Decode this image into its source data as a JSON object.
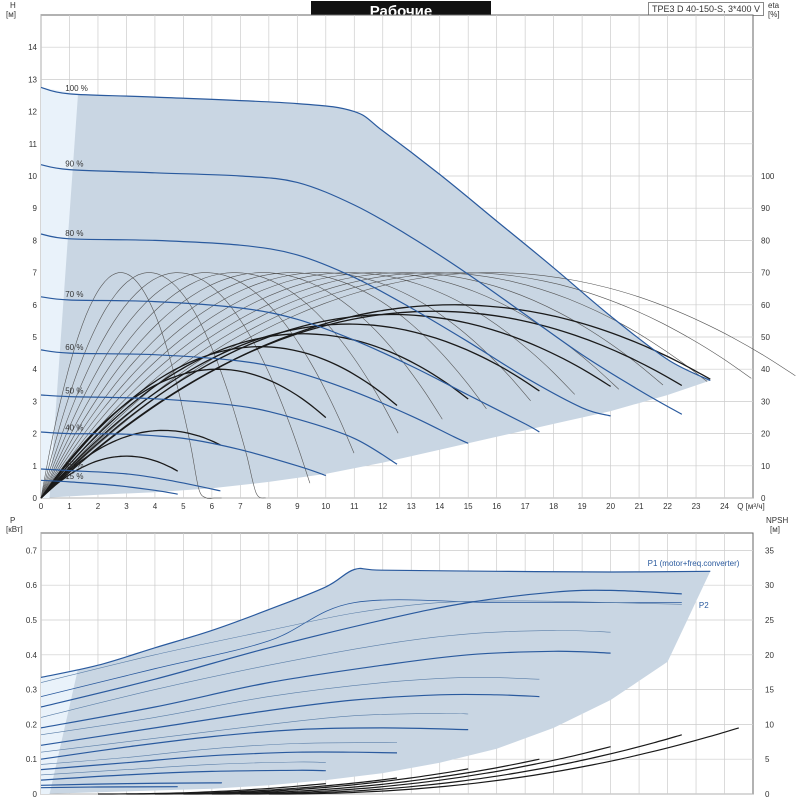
{
  "header": {
    "title": "Рабочие характеристики",
    "model": "TPE3 D 40-150-S, 3*400 V"
  },
  "colors": {
    "envelope_fill": "#c9d6e3",
    "envelope_light": "#e9f2fa",
    "speed_curve": "#2a5a9e",
    "efficiency_curve": "#1a1a1a",
    "grid": "#cccccc"
  },
  "chart_data": [
    {
      "type": "line",
      "name": "head",
      "y_axis_label_lines": [
        "H",
        "[м]"
      ],
      "y2_axis_label_lines": [
        "eta",
        "[%]"
      ],
      "x_axis_label": "Q [м³/ч]",
      "xlim": [
        0,
        25
      ],
      "ylim": [
        0,
        15
      ],
      "y2lim": [
        0,
        150
      ],
      "x_ticks": [
        0,
        1,
        2,
        3,
        4,
        5,
        6,
        7,
        8,
        9,
        10,
        11,
        12,
        13,
        14,
        15,
        16,
        17,
        18,
        19,
        20,
        21,
        22,
        23,
        24
      ],
      "y_ticks": [
        0,
        1,
        2,
        3,
        4,
        5,
        6,
        7,
        8,
        9,
        10,
        11,
        12,
        13,
        14
      ],
      "y2_ticks": [
        0,
        10,
        20,
        30,
        40,
        50,
        60,
        70,
        80,
        90,
        100
      ],
      "envelope_upper": [
        [
          0,
          12.75
        ],
        [
          1,
          12.55
        ],
        [
          4,
          12.45
        ],
        [
          9,
          12.25
        ],
        [
          11,
          12.0
        ],
        [
          12,
          11.4
        ],
        [
          14,
          10.05
        ],
        [
          16,
          8.6
        ],
        [
          18,
          7.15
        ],
        [
          20,
          5.65
        ],
        [
          22,
          4.3
        ],
        [
          23.5,
          3.65
        ]
      ],
      "envelope_lower": [
        [
          0,
          0
        ],
        [
          1,
          0.05
        ],
        [
          2,
          0.1
        ],
        [
          4,
          0.18
        ],
        [
          6,
          0.3
        ],
        [
          8,
          0.5
        ],
        [
          10,
          0.75
        ],
        [
          12,
          1.1
        ],
        [
          14,
          1.5
        ],
        [
          16,
          1.9
        ],
        [
          18,
          2.3
        ],
        [
          20,
          2.7
        ],
        [
          22,
          3.2
        ],
        [
          23.5,
          3.65
        ]
      ],
      "speed_labels": [
        "100 %",
        "90 %",
        "80 %",
        "70 %",
        "60 %",
        "50 %",
        "40 %",
        "25 %",
        "15 %"
      ],
      "speed_curves": [
        {
          "label": "100 %",
          "points": [
            [
              0,
              12.75
            ],
            [
              1,
              12.55
            ],
            [
              4,
              12.45
            ],
            [
              9,
              12.25
            ],
            [
              11,
              12.0
            ],
            [
              12,
              11.4
            ],
            [
              14,
              10.05
            ],
            [
              16,
              8.6
            ],
            [
              18,
              7.15
            ],
            [
              20,
              5.65
            ],
            [
              22,
              4.3
            ],
            [
              23.5,
              3.65
            ]
          ]
        },
        {
          "label": "90 %",
          "points": [
            [
              0,
              10.35
            ],
            [
              1,
              10.2
            ],
            [
              4,
              10.1
            ],
            [
              7,
              10.0
            ],
            [
              9,
              9.8
            ],
            [
              11,
              9.1
            ],
            [
              13,
              8.1
            ],
            [
              15,
              6.95
            ],
            [
              17,
              5.7
            ],
            [
              19,
              4.45
            ],
            [
              21,
              3.35
            ],
            [
              22.5,
              2.6
            ]
          ]
        },
        {
          "label": "80 %",
          "points": [
            [
              0,
              8.2
            ],
            [
              1,
              8.05
            ],
            [
              4,
              8.0
            ],
            [
              7,
              7.85
            ],
            [
              9,
              7.55
            ],
            [
              11,
              6.85
            ],
            [
              13,
              5.9
            ],
            [
              15,
              4.85
            ],
            [
              17,
              3.75
            ],
            [
              19,
              2.8
            ],
            [
              20,
              2.55
            ]
          ]
        },
        {
          "label": "70 %",
          "points": [
            [
              0,
              6.25
            ],
            [
              1,
              6.15
            ],
            [
              4,
              6.1
            ],
            [
              7,
              5.9
            ],
            [
              9,
              5.55
            ],
            [
              11,
              4.9
            ],
            [
              13,
              4.1
            ],
            [
              15,
              3.2
            ],
            [
              17,
              2.3
            ],
            [
              17.5,
              2.05
            ]
          ]
        },
        {
          "label": "60 %",
          "points": [
            [
              0,
              4.6
            ],
            [
              1,
              4.5
            ],
            [
              4,
              4.45
            ],
            [
              7,
              4.25
            ],
            [
              9,
              3.9
            ],
            [
              11,
              3.3
            ],
            [
              13,
              2.55
            ],
            [
              14.5,
              1.9
            ],
            [
              15,
              1.7
            ]
          ]
        },
        {
          "label": "50 %",
          "points": [
            [
              0,
              3.2
            ],
            [
              1,
              3.15
            ],
            [
              4,
              3.08
            ],
            [
              7,
              2.85
            ],
            [
              9,
              2.45
            ],
            [
              11,
              1.85
            ],
            [
              12.5,
              1.05
            ]
          ]
        },
        {
          "label": "40 %",
          "points": [
            [
              0,
              2.05
            ],
            [
              1,
              2.0
            ],
            [
              3,
              1.98
            ],
            [
              5,
              1.85
            ],
            [
              7,
              1.5
            ],
            [
              9,
              1.0
            ],
            [
              10,
              0.7
            ]
          ]
        },
        {
          "label": "25 %",
          "points": [
            [
              0,
              0.9
            ],
            [
              1,
              0.85
            ],
            [
              3,
              0.75
            ],
            [
              4.5,
              0.55
            ],
            [
              6,
              0.28
            ],
            [
              6.3,
              0.22
            ]
          ]
        },
        {
          "label": "15 %",
          "points": [
            [
              0,
              0.55
            ],
            [
              1,
              0.5
            ],
            [
              2.5,
              0.4
            ],
            [
              4,
              0.24
            ],
            [
              4.8,
              0.12
            ]
          ]
        }
      ],
      "eta_peak_x": [
        2.8,
        3.8,
        4.8,
        5.8,
        6.8,
        7.8,
        8.8,
        9.8,
        10.8,
        11.8,
        12.8,
        13.8,
        14.8,
        15.8
      ],
      "eta_thin_peak": 70,
      "eta_thick_curves": [
        {
          "x_end": 23.5,
          "peak_x": 14.5,
          "peak": 60
        },
        {
          "x_end": 22.5,
          "peak_x": 13.8,
          "peak": 58
        },
        {
          "x_end": 20,
          "peak_x": 12.3,
          "peak": 57
        },
        {
          "x_end": 17.5,
          "peak_x": 10.8,
          "peak": 54
        },
        {
          "x_end": 15,
          "peak_x": 9.2,
          "peak": 51
        },
        {
          "x_end": 12.5,
          "peak_x": 7.7,
          "peak": 47
        },
        {
          "x_end": 10,
          "peak_x": 6.2,
          "peak": 40
        },
        {
          "x_end": 6.3,
          "peak_x": 4.3,
          "peak": 21
        },
        {
          "x_end": 4.8,
          "peak_x": 3.0,
          "peak": 13
        }
      ]
    },
    {
      "type": "line",
      "name": "power_npsh",
      "y_axis_label_lines": [
        "P",
        "[кВт]"
      ],
      "y2_axis_label_lines": [
        "NPSH",
        "[м]"
      ],
      "xlim": [
        0,
        25
      ],
      "ylim": [
        0,
        0.75
      ],
      "y2lim": [
        0,
        37.5
      ],
      "y_ticks": [
        0,
        0.1,
        0.2,
        0.3,
        0.4,
        0.5,
        0.6,
        0.7
      ],
      "y_tick_labels": [
        "0",
        "0.1",
        "0.2",
        "0.3",
        "0.4",
        "0.5",
        "0.6",
        "0.7"
      ],
      "y2_ticks": [
        0,
        5,
        10,
        15,
        20,
        25,
        30,
        35
      ],
      "legend_p1": "P1 (motor+freq.converter)",
      "legend_p2": "P2",
      "envelope_upper": [
        [
          0,
          0.335
        ],
        [
          2,
          0.37
        ],
        [
          4,
          0.42
        ],
        [
          6,
          0.47
        ],
        [
          8,
          0.53
        ],
        [
          10,
          0.595
        ],
        [
          11,
          0.645
        ],
        [
          12,
          0.643
        ],
        [
          16,
          0.64
        ],
        [
          20,
          0.638
        ],
        [
          23.5,
          0.64
        ]
      ],
      "envelope_lower": [
        [
          0,
          0.0
        ],
        [
          2,
          0.005
        ],
        [
          4,
          0.01
        ],
        [
          6,
          0.015
        ],
        [
          8,
          0.025
        ],
        [
          10,
          0.04
        ],
        [
          12,
          0.06
        ],
        [
          14,
          0.09
        ],
        [
          16,
          0.13
        ],
        [
          18,
          0.19
        ],
        [
          20,
          0.27
        ],
        [
          22,
          0.38
        ],
        [
          23.5,
          0.64
        ]
      ],
      "p1_curves": [
        {
          "x_end": 22.5,
          "points": [
            [
              0,
              0.25
            ],
            [
              4,
              0.33
            ],
            [
              8,
              0.42
            ],
            [
              12,
              0.5
            ],
            [
              15,
              0.55
            ],
            [
              18,
              0.58
            ],
            [
              20,
              0.585
            ],
            [
              22.5,
              0.575
            ]
          ]
        },
        {
          "x_end": 20,
          "points": [
            [
              0,
              0.19
            ],
            [
              4,
              0.25
            ],
            [
              8,
              0.32
            ],
            [
              12,
              0.37
            ],
            [
              15,
              0.4
            ],
            [
              18,
              0.41
            ],
            [
              20,
              0.405
            ]
          ]
        },
        {
          "x_end": 17.5,
          "points": [
            [
              0,
              0.14
            ],
            [
              4,
              0.19
            ],
            [
              8,
              0.24
            ],
            [
              11,
              0.27
            ],
            [
              14,
              0.285
            ],
            [
              16,
              0.285
            ],
            [
              17.5,
              0.28
            ]
          ]
        },
        {
          "x_end": 15,
          "points": [
            [
              0,
              0.1
            ],
            [
              3,
              0.135
            ],
            [
              6,
              0.165
            ],
            [
              9,
              0.185
            ],
            [
              12,
              0.19
            ],
            [
              15,
              0.185
            ]
          ]
        },
        {
          "x_end": 12.5,
          "points": [
            [
              0,
              0.07
            ],
            [
              3,
              0.09
            ],
            [
              6,
              0.11
            ],
            [
              9,
              0.12
            ],
            [
              11,
              0.12
            ],
            [
              12.5,
              0.118
            ]
          ]
        },
        {
          "x_end": 10,
          "points": [
            [
              0,
              0.04
            ],
            [
              3,
              0.055
            ],
            [
              6,
              0.065
            ],
            [
              9,
              0.068
            ],
            [
              10,
              0.067
            ]
          ]
        },
        {
          "x_end": 6.3,
          "points": [
            [
              0,
              0.025
            ],
            [
              3,
              0.03
            ],
            [
              6,
              0.032
            ],
            [
              6.3,
              0.032
            ]
          ]
        },
        {
          "x_end": 4.8,
          "points": [
            [
              0,
              0.018
            ],
            [
              2,
              0.02
            ],
            [
              4.8,
              0.021
            ]
          ]
        }
      ],
      "p2_thin_curves": [
        {
          "points": [
            [
              0,
              0.32
            ],
            [
              4,
              0.4
            ],
            [
              8,
              0.47
            ],
            [
              11,
              0.52
            ],
            [
              14,
              0.55
            ],
            [
              17,
              0.555
            ],
            [
              20,
              0.55
            ],
            [
              22.5,
              0.545
            ]
          ]
        },
        {
          "points": [
            [
              0,
              0.22
            ],
            [
              4,
              0.3
            ],
            [
              8,
              0.37
            ],
            [
              12,
              0.43
            ],
            [
              15,
              0.46
            ],
            [
              18,
              0.47
            ],
            [
              20,
              0.465
            ]
          ]
        },
        {
          "points": [
            [
              0,
              0.17
            ],
            [
              4,
              0.22
            ],
            [
              8,
              0.28
            ],
            [
              12,
              0.32
            ],
            [
              15,
              0.335
            ],
            [
              17.5,
              0.33
            ]
          ]
        },
        {
          "points": [
            [
              0,
              0.12
            ],
            [
              4,
              0.16
            ],
            [
              8,
              0.2
            ],
            [
              11,
              0.225
            ],
            [
              14,
              0.232
            ],
            [
              15,
              0.23
            ]
          ]
        },
        {
          "points": [
            [
              0,
              0.085
            ],
            [
              3,
              0.105
            ],
            [
              6,
              0.13
            ],
            [
              9,
              0.145
            ],
            [
              12.5,
              0.148
            ]
          ]
        },
        {
          "points": [
            [
              0,
              0.055
            ],
            [
              3,
              0.07
            ],
            [
              6,
              0.085
            ],
            [
              9,
              0.092
            ],
            [
              10,
              0.09
            ]
          ]
        }
      ],
      "npsh_curves": [
        {
          "x_start": 8,
          "x_end": 24.5,
          "end_value": 9.5
        },
        {
          "x_start": 7,
          "x_end": 22.5,
          "end_value": 8.5
        },
        {
          "x_start": 6,
          "x_end": 20,
          "end_value": 6.8
        },
        {
          "x_start": 5,
          "x_end": 17.5,
          "end_value": 5.0
        },
        {
          "x_start": 4,
          "x_end": 15,
          "end_value": 3.6
        },
        {
          "x_start": 3,
          "x_end": 12.5,
          "end_value": 2.3
        },
        {
          "x_start": 2,
          "x_end": 10,
          "end_value": 1.5
        }
      ]
    }
  ]
}
